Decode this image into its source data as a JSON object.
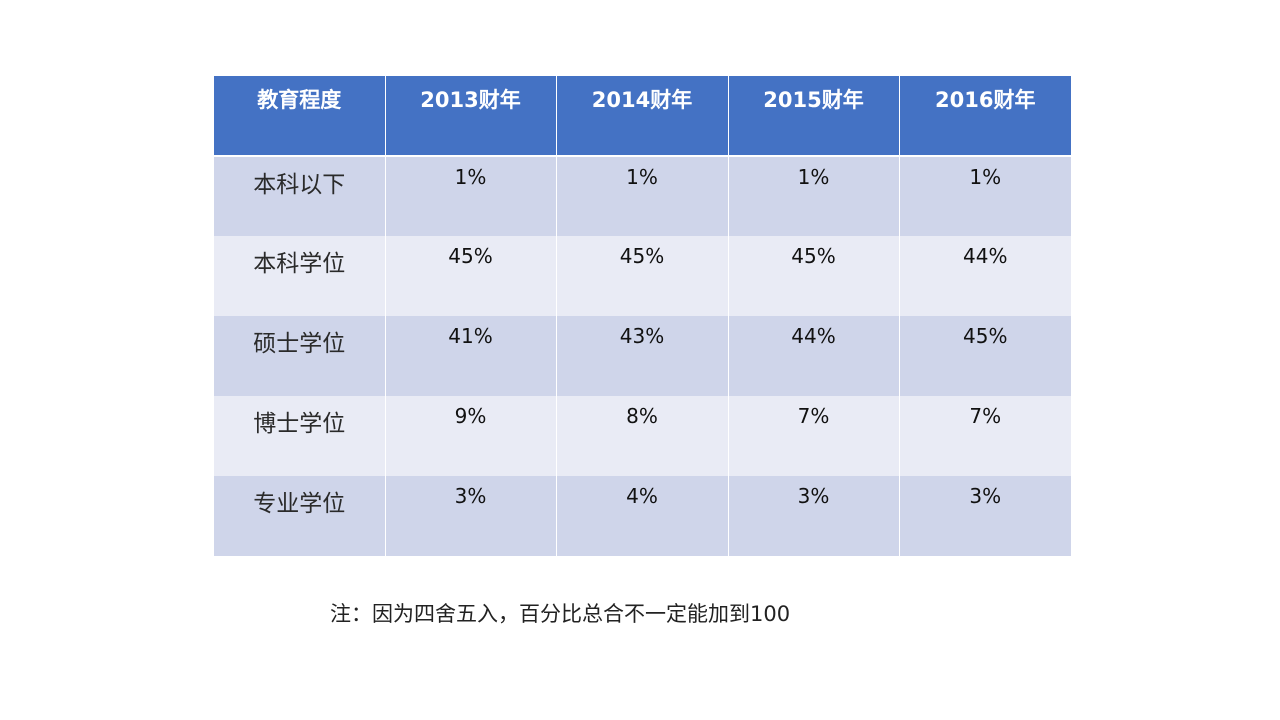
{
  "table": {
    "headers": [
      "教育程度",
      "2013财年",
      "2014财年",
      "2015财年",
      "2016财年"
    ],
    "rows": [
      {
        "label": "本科以下",
        "values": [
          "1%",
          "1%",
          "1%",
          "1%"
        ]
      },
      {
        "label": "本科学位",
        "values": [
          "45%",
          "45%",
          "45%",
          "44%"
        ]
      },
      {
        "label": "硕士学位",
        "values": [
          "41%",
          "43%",
          "44%",
          "45%"
        ]
      },
      {
        "label": "博士学位",
        "values": [
          "9%",
          "8%",
          "7%",
          "7%"
        ]
      },
      {
        "label": "专业学位",
        "values": [
          "3%",
          "4%",
          "3%",
          "3%"
        ]
      }
    ]
  },
  "colors": {
    "header_bg": "#4472c4",
    "row_odd_bg": "#cfd5ea",
    "row_even_bg": "#e9ebf5"
  },
  "note": "注：因为四舍五入，百分比总合不一定能加到100"
}
